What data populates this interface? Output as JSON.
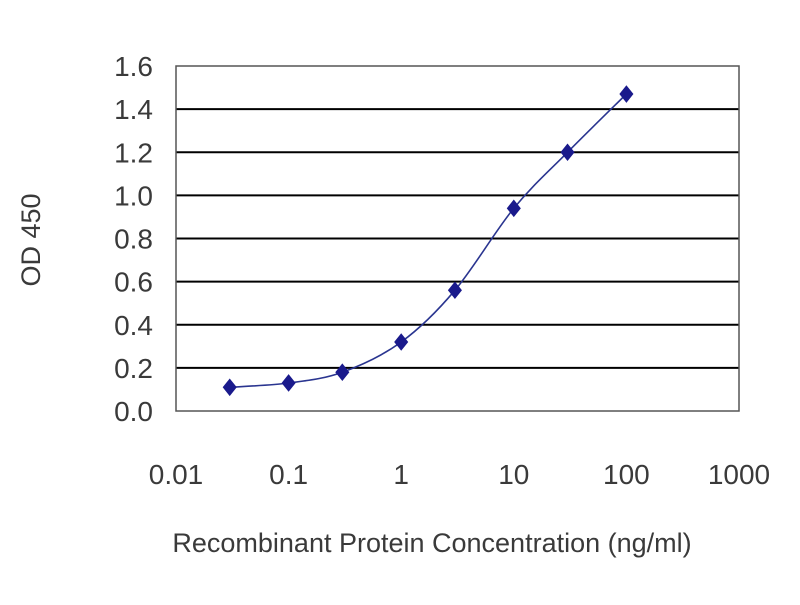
{
  "chart_data": {
    "type": "scatter",
    "title": "",
    "xlabel": "Recombinant Protein Concentration (ng/ml)",
    "ylabel": "OD 450",
    "x_scale": "log",
    "xlim": [
      0.01,
      1000
    ],
    "ylim": [
      0,
      1.6
    ],
    "x_ticks": [
      0.01,
      0.1,
      1,
      10,
      100,
      1000
    ],
    "x_tick_labels": [
      "0.01",
      "0.1",
      "1",
      "10",
      "100",
      "1000"
    ],
    "y_ticks": [
      0,
      0.2,
      0.4,
      0.6,
      0.8,
      1.0,
      1.2,
      1.4,
      1.6
    ],
    "y_tick_labels": [
      "0.0",
      "0.2",
      "0.4",
      "0.6",
      "0.8",
      "1.0",
      "1.2",
      "1.4",
      "1.6"
    ],
    "grid": "horizontal",
    "legend": "none",
    "series": [
      {
        "x": [
          0.03,
          0.1,
          0.3,
          1,
          3,
          10,
          30,
          100
        ],
        "y": [
          0.11,
          0.13,
          0.18,
          0.32,
          0.56,
          0.94,
          1.2,
          1.47
        ],
        "fit_curve": true
      }
    ],
    "colors": {
      "marker": "#1a1a8c",
      "line": "#2a3590",
      "grid": "#000000",
      "frame": "#555555",
      "text": "#3a3a3a"
    }
  }
}
